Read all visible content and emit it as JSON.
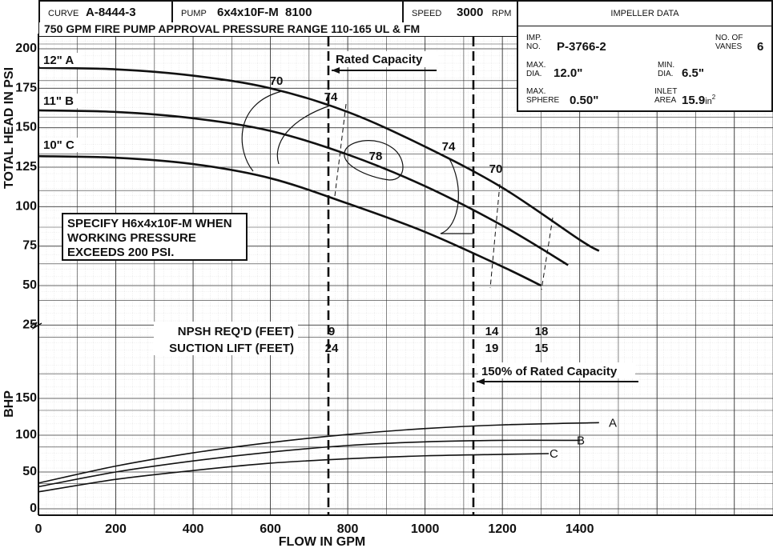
{
  "header": {
    "curve_label": "CURVE",
    "curve_value": "A-8444-3",
    "pump_label": "PUMP",
    "pump_value": "6x4x10F-M  8100",
    "speed_label": "SPEED",
    "speed_value": "3000",
    "speed_unit": "RPM",
    "subtitle": "750 GPM FIRE PUMP APPROVAL PRESSURE RANGE 110-165 UL & FM"
  },
  "impeller": {
    "title": "IMPELLER DATA",
    "imp_no_label": "IMP.\nNO.",
    "imp_no_value": "P-3766-2",
    "vanes_label": "NO. OF\nVANES",
    "vanes_value": "6",
    "max_dia_label": "MAX.\nDIA.",
    "max_dia_value": "12.0\"",
    "min_dia_label": "MIN.\nDIA.",
    "min_dia_value": "6.5\"",
    "max_sphere_label": "MAX.\nSPHERE",
    "max_sphere_value": "0.50\"",
    "inlet_area_label": "INLET\nAREA",
    "inlet_area_value": "15.9",
    "inlet_area_unit": "in",
    "inlet_area_exp": "2"
  },
  "note": [
    "SPECIFY H6x4x10F-M WHEN",
    "WORKING PRESSURE",
    "EXCEEDS 200 PSI."
  ],
  "chart_data": {
    "type": "line",
    "xlabel": "FLOW IN GPM",
    "head_ylabel": "TOTAL HEAD IN PSI",
    "bhp_ylabel": "BHP",
    "xlim": [
      0,
      1900
    ],
    "x_ticks": [
      0,
      200,
      400,
      600,
      800,
      1000,
      1200,
      1400
    ],
    "head_ticks": [
      25,
      50,
      75,
      100,
      125,
      150,
      175,
      200
    ],
    "bhp_ticks": [
      0,
      50,
      100,
      150
    ],
    "head_ylim": [
      25,
      200
    ],
    "bhp_ylim": [
      0,
      150
    ],
    "grid": true,
    "head_series": [
      {
        "name": "12\" A",
        "x": [
          0,
          200,
          400,
          600,
          800,
          1000,
          1200,
          1400,
          1450
        ],
        "y": [
          188,
          187,
          183,
          175,
          160,
          138,
          112,
          79,
          72
        ]
      },
      {
        "name": "11\" B",
        "x": [
          0,
          200,
          400,
          600,
          800,
          1000,
          1200,
          1370
        ],
        "y": [
          161,
          160,
          156,
          148,
          133,
          113,
          88,
          63
        ]
      },
      {
        "name": "10\" C",
        "x": [
          0,
          200,
          400,
          600,
          800,
          1000,
          1200,
          1300
        ],
        "y": [
          132,
          131,
          127,
          118,
          102,
          84,
          62,
          50
        ]
      }
    ],
    "efficiency_labels": [
      "70",
      "74",
      "78",
      "74",
      "70"
    ],
    "bhp_series": [
      {
        "name": "A",
        "x": [
          0,
          200,
          400,
          600,
          800,
          1000,
          1200,
          1450
        ],
        "y": [
          35,
          58,
          76,
          90,
          101,
          109,
          114,
          117
        ]
      },
      {
        "name": "B",
        "x": [
          0,
          200,
          400,
          600,
          800,
          1000,
          1200,
          1400
        ],
        "y": [
          30,
          50,
          65,
          77,
          86,
          91,
          93,
          93
        ]
      },
      {
        "name": "C",
        "x": [
          0,
          200,
          400,
          600,
          800,
          1000,
          1200,
          1320
        ],
        "y": [
          23,
          40,
          52,
          62,
          68,
          72,
          74,
          75
        ]
      }
    ],
    "rated_capacity": {
      "label": "Rated Capacity",
      "x": 750
    },
    "capacity_150": {
      "label": "150% of Rated Capacity",
      "x": 1125
    },
    "npsh": {
      "label": "NPSH REQ'D (FEET)",
      "x": [
        750,
        1170,
        1300
      ],
      "values": [
        "9",
        "14",
        "18"
      ]
    },
    "suction_lift": {
      "label": "SUCTION LIFT (FEET)",
      "x": [
        750,
        1170,
        1300
      ],
      "values": [
        "24",
        "19",
        "15"
      ]
    }
  }
}
